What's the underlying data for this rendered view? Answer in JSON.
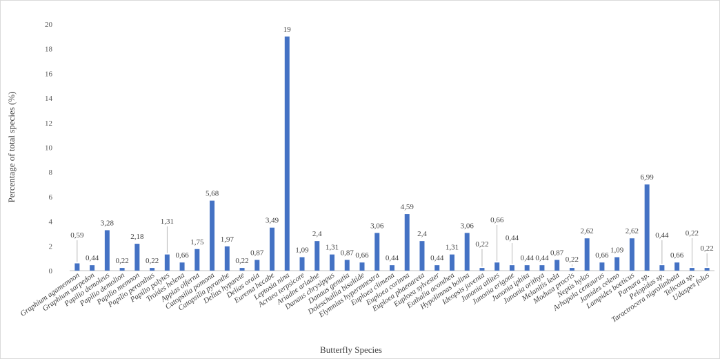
{
  "chart_data": {
    "type": "bar",
    "xlabel": "Butterfly Species",
    "ylabel": "Percentage of total species (%)",
    "ylim": [
      0,
      20
    ],
    "yticks": [
      "0",
      "2",
      "4",
      "6",
      "8",
      "10",
      "12",
      "14",
      "16",
      "18",
      "20"
    ],
    "grid": false,
    "bar_color": "#4472c4",
    "categories": [
      "Graphium agamemnon",
      "Graphium sarpedon",
      "Papilio demoleus",
      "Papilio demolion",
      "Papilio memnon",
      "Papilio peranthus",
      "Papilio polytes",
      "Troides helena",
      "Appias olferna",
      "Catopsilia pomona",
      "Catopsilia pyranthe",
      "Delias hyparete",
      "Delias oraia",
      "Eurema hecabe",
      "Leptosia nina",
      "Acraea terpsicore",
      "Ariadne ariadne",
      "Danaus chrysippus",
      "Danaus genutia",
      "Doleschallia bisaltide",
      "Elymnias hypermnestra",
      "Euploea climena",
      "Euploea corinna",
      "Euploea phaenareta",
      "Euploea sylvester",
      "Euthalia aconthea",
      "Hypolimnas bolina",
      "Ideopsis juventa",
      "Junonia atlites",
      "Junonia erigone",
      "Junonia iphita",
      "Junonia orithya",
      "Melanitis leda",
      "Moduza procris",
      "Neptis hylas",
      "Arhopala centaurus",
      "Jamides celeno",
      "Lampides boeticus",
      "Parnara sp.",
      "Pelopidas sp.",
      "Taractrocera nigrolimbata",
      "Telicota sp.",
      "Udaspes folus"
    ],
    "values": [
      0.59,
      0.44,
      3.28,
      0.22,
      2.18,
      0.22,
      1.31,
      0.66,
      1.75,
      5.68,
      1.97,
      0.22,
      0.87,
      3.49,
      19,
      1.09,
      2.4,
      1.31,
      0.87,
      0.66,
      3.06,
      0.44,
      4.59,
      2.4,
      0.44,
      1.31,
      3.06,
      0.22,
      0.66,
      0.44,
      0.44,
      0.44,
      0.87,
      0.22,
      2.62,
      0.66,
      1.09,
      2.62,
      6.99,
      0.44,
      0.66,
      0.22,
      0.22
    ],
    "data_labels": [
      "0,59",
      "0,44",
      "3,28",
      "0,22",
      "2,18",
      "0,22",
      "1,31",
      "0,66",
      "1,75",
      "5,68",
      "1,97",
      "0,22",
      "0,87",
      "3,49",
      "19",
      "1,09",
      "2,4",
      "1,31",
      "0,87",
      "0,66",
      "3,06",
      "0,44",
      "4,59",
      "2,4",
      "0,44",
      "1,31",
      "3,06",
      "0,22",
      "0,66",
      "0,44",
      "0,44",
      "0,44",
      "0,87",
      "0,22",
      "2,62",
      "0,66",
      "1,09",
      "2,62",
      "6,99",
      "0,44",
      "0,66",
      "0,22",
      "0,22"
    ]
  }
}
